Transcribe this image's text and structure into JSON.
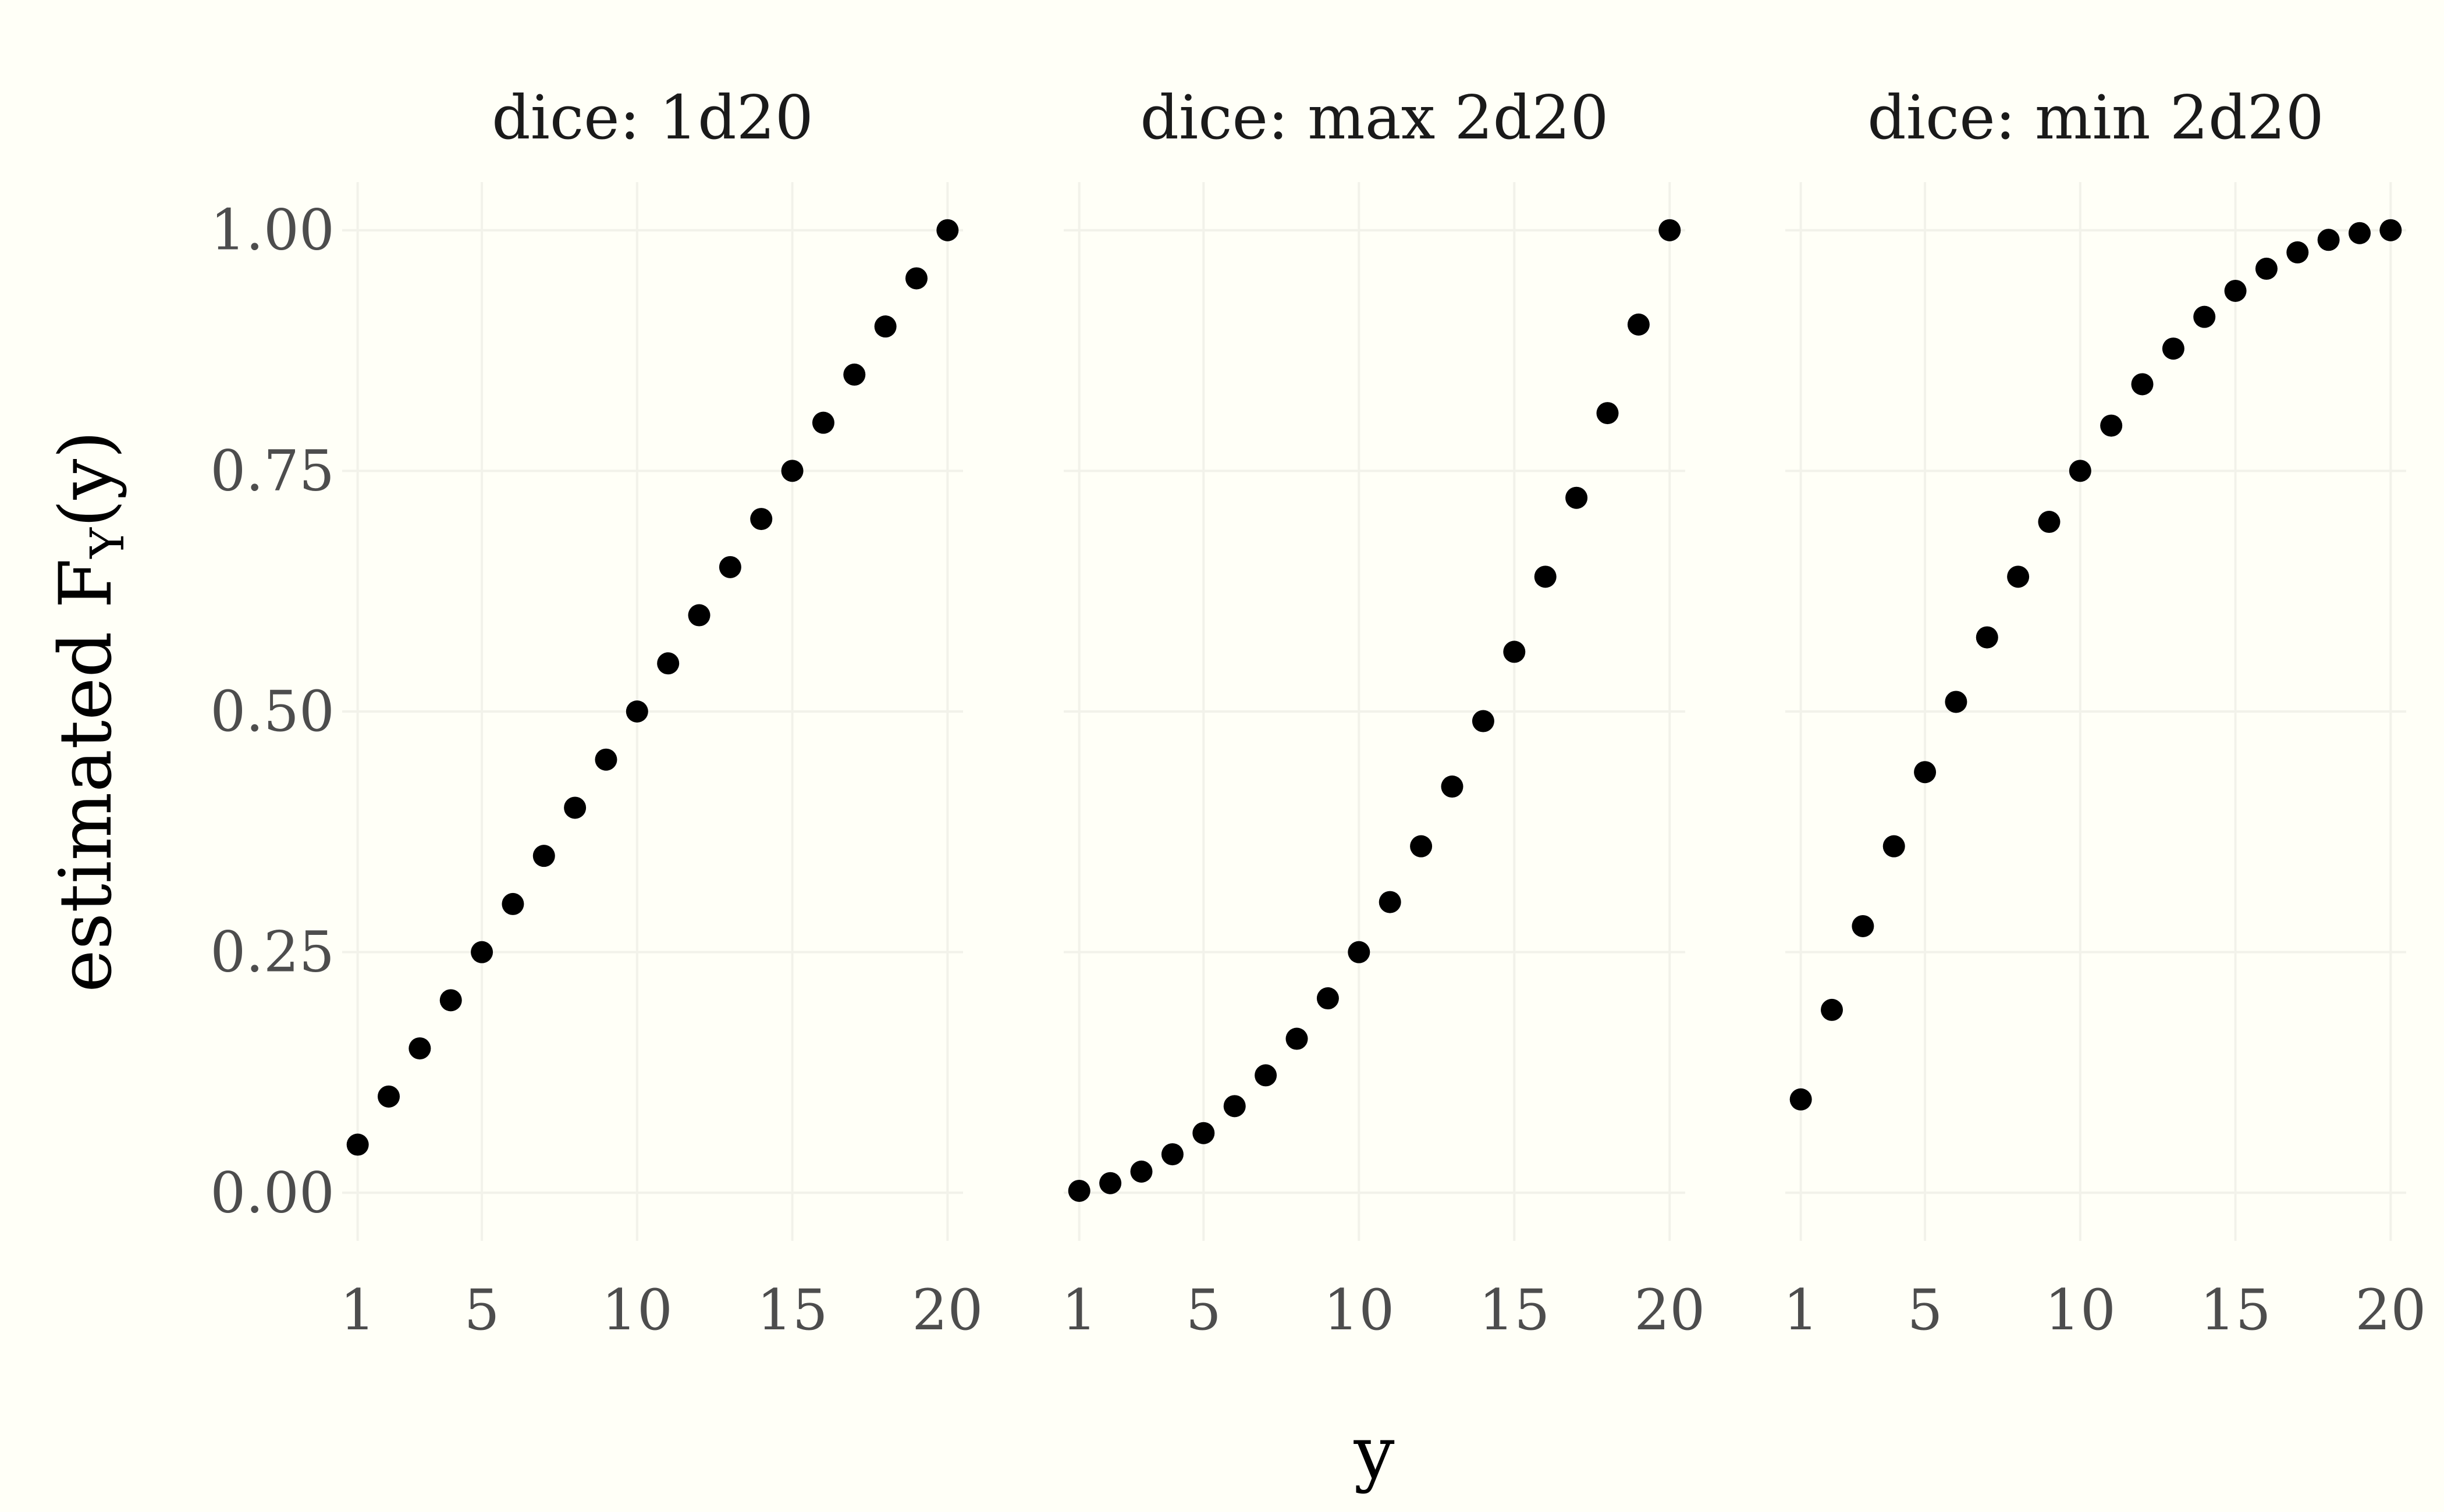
{
  "chart_data": {
    "type": "scatter",
    "x_values": [
      1,
      2,
      3,
      4,
      5,
      6,
      7,
      8,
      9,
      10,
      11,
      12,
      13,
      14,
      15,
      16,
      17,
      18,
      19,
      20
    ],
    "xlabel": "y",
    "ylabel_prefix": "estimated F",
    "ylabel_subscript": "Y",
    "ylabel_suffix": "(y)",
    "x_ticks": [
      1,
      5,
      10,
      15,
      20
    ],
    "x_tick_labels": [
      "1",
      "5",
      "10",
      "15",
      "20"
    ],
    "y_ticks": [
      0,
      0.25,
      0.5,
      0.75,
      1.0
    ],
    "y_tick_labels": [
      "0.00",
      "0.25",
      "0.50",
      "0.75",
      "1.00"
    ],
    "xlim": [
      0.5,
      20.5
    ],
    "ylim": [
      -0.05,
      1.05
    ],
    "grid": true,
    "panels": [
      {
        "title": "dice: 1d20",
        "values": [
          0.05,
          0.1,
          0.15,
          0.2,
          0.25,
          0.3,
          0.35,
          0.4,
          0.45,
          0.5,
          0.55,
          0.6,
          0.65,
          0.7,
          0.75,
          0.8,
          0.85,
          0.9,
          0.95,
          1.0
        ]
      },
      {
        "title": "dice: max 2d20",
        "values": [
          0.002,
          0.01,
          0.022,
          0.04,
          0.062,
          0.09,
          0.122,
          0.16,
          0.202,
          0.25,
          0.302,
          0.36,
          0.422,
          0.49,
          0.562,
          0.64,
          0.722,
          0.81,
          0.902,
          1.0
        ]
      },
      {
        "title": "dice: min 2d20",
        "values": [
          0.097,
          0.19,
          0.277,
          0.36,
          0.437,
          0.51,
          0.577,
          0.64,
          0.697,
          0.75,
          0.797,
          0.84,
          0.877,
          0.91,
          0.937,
          0.96,
          0.977,
          0.99,
          0.997,
          1.0
        ]
      }
    ]
  }
}
